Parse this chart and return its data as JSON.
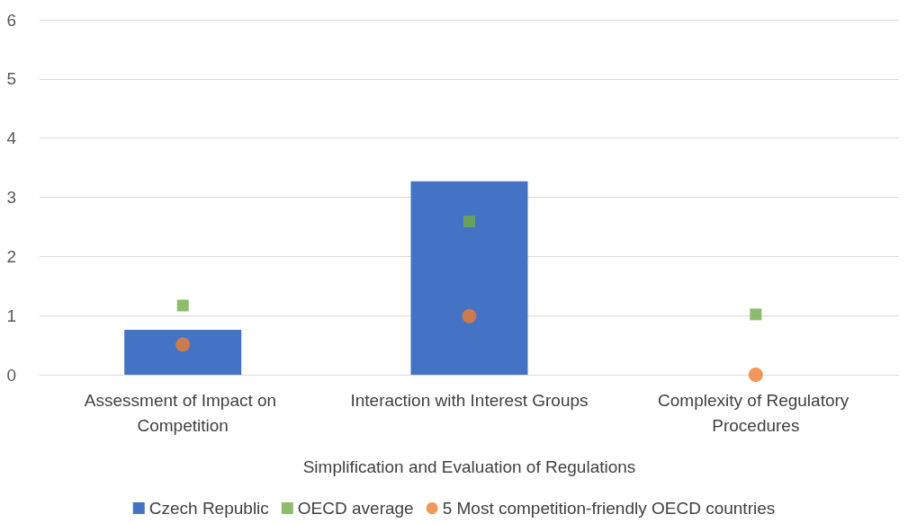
{
  "chart_data": {
    "type": "bar",
    "categories": [
      "Assessment of Impact on Competition",
      "Interaction with Interest Groups",
      "Complexity of Regulatory Procedures"
    ],
    "xlabel": "Simplification and Evaluation of Regulations",
    "series": [
      {
        "name": "Czech Republic",
        "color": "#4472c4",
        "values": [
          0.76,
          3.27,
          0
        ]
      },
      {
        "name": "OECD average",
        "color": "#70ad47",
        "type": "scatter",
        "marker": "square",
        "values": [
          1.17,
          2.59,
          1.02
        ]
      },
      {
        "name": "5 Most competition-friendly OECD countries",
        "color": "#ed7d31",
        "type": "scatter",
        "marker": "circle",
        "values": [
          0.51,
          0.99,
          0
        ]
      }
    ],
    "ylim": [
      0,
      6
    ],
    "yticks": [
      0,
      1,
      2,
      3,
      4,
      5,
      6
    ],
    "grid": "y",
    "legend": "bottom"
  }
}
